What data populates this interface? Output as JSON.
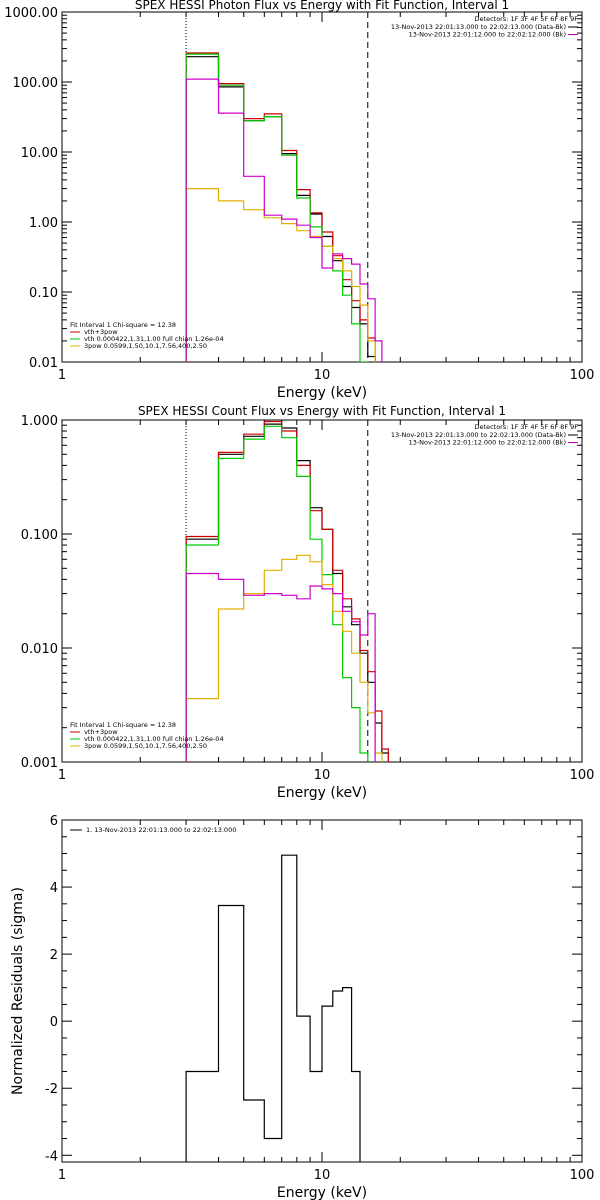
{
  "panels": [
    {
      "id": "photon",
      "chart_data": {
        "type": "line",
        "title": "SPEX HESSI Photon Flux vs Energy with Fit Function, Interval 1",
        "xlabel": "Energy (keV)",
        "ylabel": "",
        "xscale": "log",
        "yscale": "log",
        "xlim": [
          1,
          100
        ],
        "ylim": [
          0.01,
          1000
        ],
        "xticks": [
          1,
          10,
          100
        ],
        "xtick_labels": [
          "1",
          "10",
          "100"
        ],
        "yticks": [
          0.01,
          0.1,
          1,
          10,
          100,
          1000
        ],
        "ytick_labels": [
          "0.01",
          "0.10",
          "1.00",
          "10.00",
          "100.00",
          "1000.00"
        ],
        "vlines": [
          {
            "x": 3.0,
            "style": "dotted"
          },
          {
            "x": 15.0,
            "style": "dashed"
          }
        ],
        "detectors_text": "Detectors: 1F 3F 4F 5F 6F 8F 9F",
        "top_legend": [
          {
            "label": "13-Nov-2013 22:01:13.000 to 22:02:13.000 (Data-Bk)",
            "color": "#000000"
          },
          {
            "label": "13-Nov-2013 22:01:12.000 to 22:02:12.000 (Bk)",
            "color": "#cc00cc"
          }
        ],
        "fit_legend_header": "Fit Interval 1    Chi-square = 12.38",
        "fit_legend": [
          {
            "label": "vth+3pow",
            "color": "#cc0000"
          },
          {
            "label": "vth 0.000422,1.31,1.00   full chian 1.26e-04",
            "color": "#00cc00"
          },
          {
            "label": "3pow 0.0599,1.50,10.1,7.56,400,2.50",
            "color": "#e0b000"
          }
        ],
        "bin_edges": [
          3,
          4,
          5,
          6,
          7,
          8,
          9,
          10,
          11,
          12,
          13,
          14,
          15,
          16,
          17,
          18
        ],
        "series": [
          {
            "id": "data",
            "color": "#000000",
            "values": [
              230,
              85,
              28,
              32,
              9.5,
              2.4,
              1.3,
              0.62,
              0.28,
              0.12,
              0.06,
              0.035,
              0.012,
              null,
              null
            ]
          },
          {
            "id": "fit",
            "color": "#cc0000",
            "values": [
              260,
              95,
              30,
              35,
              10.5,
              2.9,
              1.35,
              0.72,
              0.33,
              0.15,
              0.075,
              0.04,
              0.022,
              null,
              null
            ]
          },
          {
            "id": "vth",
            "color": "#00cc00",
            "values": [
              250,
              90,
              28,
              32,
              9.0,
              2.2,
              0.85,
              0.45,
              0.2,
              0.09,
              0.035,
              0.01,
              null,
              null,
              null
            ]
          },
          {
            "id": "pow",
            "color": "#e0b000",
            "values": [
              3.0,
              2.0,
              1.5,
              1.15,
              0.95,
              0.75,
              0.62,
              0.45,
              0.3,
              0.2,
              0.12,
              0.065,
              0.02,
              null,
              null
            ]
          },
          {
            "id": "bk",
            "color": "#cc00cc",
            "values": [
              110,
              36,
              4.5,
              1.25,
              1.1,
              0.9,
              0.6,
              0.22,
              0.35,
              0.3,
              0.25,
              0.13,
              0.08,
              0.02,
              null
            ]
          }
        ]
      }
    },
    {
      "id": "count",
      "chart_data": {
        "type": "line",
        "title": "SPEX HESSI Count Flux vs Energy with Fit Function, Interval 1",
        "xlabel": "Energy (keV)",
        "ylabel": "",
        "xscale": "log",
        "yscale": "log",
        "xlim": [
          1,
          100
        ],
        "ylim": [
          0.001,
          1.0
        ],
        "xticks": [
          1,
          10,
          100
        ],
        "xtick_labels": [
          "1",
          "10",
          "100"
        ],
        "yticks": [
          0.001,
          0.01,
          0.1,
          1.0
        ],
        "ytick_labels": [
          "0.001",
          "0.010",
          "0.100",
          "1.000"
        ],
        "vlines": [
          {
            "x": 3.0,
            "style": "dotted"
          },
          {
            "x": 15.0,
            "style": "dashed"
          }
        ],
        "detectors_text": "Detectors: 1F 3F 4F 5F 6F 8F 9F",
        "top_legend": [
          {
            "label": "13-Nov-2013 22:01:13.000 to 22:02:13.000 (Data-Bk)",
            "color": "#000000"
          },
          {
            "label": "13-Nov-2013 22:01:12.000 to 22:02:12.000 (Bk)",
            "color": "#cc00cc"
          }
        ],
        "fit_legend_header": "Fit Interval 1    Chi-square = 12.38",
        "fit_legend": [
          {
            "label": "vth+3pow",
            "color": "#cc0000"
          },
          {
            "label": "vth 0.000422,1.31,1.00   full chian 1.26e-04",
            "color": "#00cc00"
          },
          {
            "label": "3pow 0.0599,1.50,10.1,7.56,400,2.50",
            "color": "#e0b000"
          }
        ],
        "bin_edges": [
          3,
          4,
          5,
          6,
          7,
          8,
          9,
          10,
          11,
          12,
          13,
          14,
          15,
          16,
          17,
          18
        ],
        "series": [
          {
            "id": "data",
            "color": "#000000",
            "values": [
              0.09,
              0.5,
              0.72,
              0.92,
              0.85,
              0.44,
              0.17,
              0.11,
              0.045,
              0.023,
              0.016,
              0.009,
              0.005,
              0.0022,
              0.0012
            ]
          },
          {
            "id": "fit",
            "color": "#cc0000",
            "values": [
              0.095,
              0.52,
              0.75,
              0.97,
              0.8,
              0.4,
              0.16,
              0.11,
              0.048,
              0.027,
              0.018,
              0.0095,
              0.0062,
              0.0028,
              0.0013
            ]
          },
          {
            "id": "vth",
            "color": "#00cc00",
            "values": [
              0.08,
              0.46,
              0.68,
              0.88,
              0.7,
              0.32,
              0.09,
              0.044,
              0.016,
              0.0055,
              0.003,
              0.0012,
              null,
              null,
              null
            ]
          },
          {
            "id": "pow",
            "color": "#e0b000",
            "values": [
              0.0036,
              0.022,
              0.03,
              0.048,
              0.06,
              0.065,
              0.057,
              0.036,
              0.021,
              0.014,
              0.009,
              0.005,
              0.0027,
              0.0012,
              null
            ]
          },
          {
            "id": "bk",
            "color": "#cc00cc",
            "values": [
              0.045,
              0.04,
              0.029,
              0.03,
              0.029,
              0.027,
              0.035,
              0.033,
              0.03,
              0.021,
              0.017,
              0.013,
              0.02,
              null,
              null
            ]
          }
        ]
      }
    },
    {
      "id": "residuals",
      "chart_data": {
        "type": "line",
        "title": "",
        "xlabel": "Energy (keV)",
        "ylabel": "Normalized Residuals (sigma)",
        "xscale": "log",
        "yscale": "linear",
        "xlim": [
          1,
          100
        ],
        "ylim": [
          -4.2,
          6
        ],
        "xticks": [
          1,
          10,
          100
        ],
        "xtick_labels": [
          "1",
          "10",
          "100"
        ],
        "yticks": [
          -4,
          -2,
          0,
          2,
          4,
          6
        ],
        "ytick_labels": [
          "-4",
          "-2",
          "0",
          "2",
          "4",
          "6"
        ],
        "vlines": [],
        "top_legend": [
          {
            "label": "1. 13-Nov-2013 22:01:13.000 to 22:02:13.000",
            "color": "#000000"
          }
        ],
        "bin_edges": [
          3,
          4,
          5,
          6,
          7,
          8,
          9,
          10,
          11,
          12,
          13,
          14,
          15
        ],
        "series": [
          {
            "id": "residuals",
            "color": "#000000",
            "values": [
              -1.5,
              3.45,
              -2.35,
              -3.5,
              4.95,
              0.15,
              -1.5,
              0.45,
              0.9,
              1.0,
              -1.5,
              null
            ]
          }
        ]
      }
    }
  ]
}
